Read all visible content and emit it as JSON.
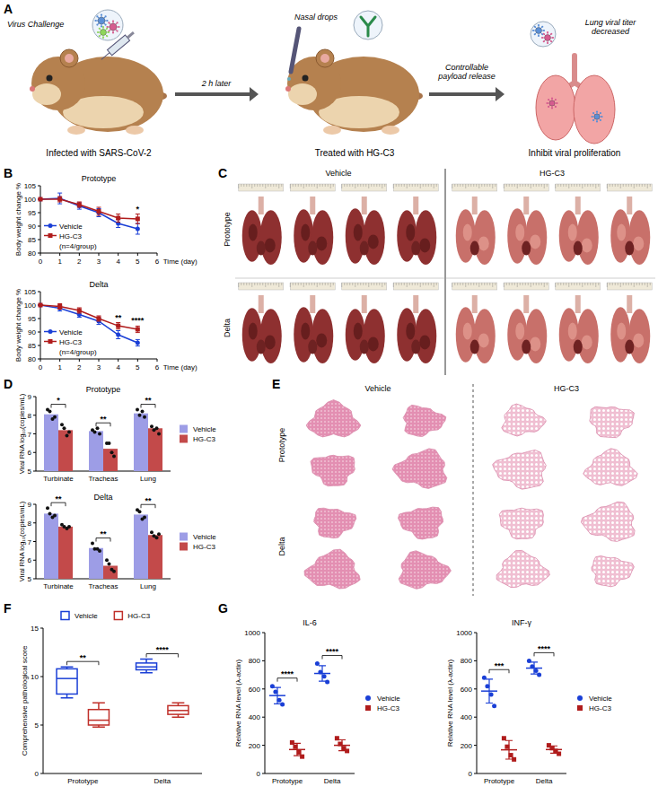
{
  "panel_labels": [
    "A",
    "B",
    "C",
    "D",
    "E",
    "F",
    "G"
  ],
  "schematic": {
    "steps": [
      {
        "top": "Virus Challenge",
        "caption": "Infected with SARS-CoV-2"
      },
      {
        "top": "Nasal drops",
        "caption": "Treated with HG-C3"
      },
      {
        "top": "Lung viral titer decreased",
        "caption": "Inhibit viral proliferation"
      }
    ],
    "arrows": [
      "2 h later",
      "Controllable payload release"
    ]
  },
  "photos": {
    "columns": [
      "Vehicle",
      "HG-C3"
    ],
    "rows": [
      "Prototype",
      "Delta"
    ]
  },
  "histology": {
    "columns": [
      "Vehicle",
      "HG-C3"
    ],
    "rows": [
      "Prototype",
      "Delta"
    ]
  },
  "chart_data": [
    {
      "type": "line",
      "title": "Prototype",
      "x_label": "Time (day)",
      "y_label": "Body weight change %",
      "x": [
        0,
        1,
        2,
        3,
        4,
        5
      ],
      "xlim": [
        0,
        6
      ],
      "xticks": [
        0,
        1,
        2,
        3,
        4,
        5,
        6
      ],
      "ylim": [
        80,
        105
      ],
      "yticks": [
        80,
        85,
        90,
        95,
        100,
        105
      ],
      "grid": false,
      "legend": "lower left",
      "legend_note": "(n=4/group)",
      "series": [
        {
          "name": "Vehicle",
          "color": "#1a3fd6",
          "marker": "circle",
          "values": [
            100,
            100.3,
            97.5,
            95,
            91,
            89
          ],
          "errors": [
            0,
            2,
            1.2,
            1.5,
            1.5,
            2
          ]
        },
        {
          "name": "HG-C3",
          "color": "#b01c1c",
          "marker": "square",
          "values": [
            100,
            100,
            98,
            95.5,
            93,
            92.7
          ],
          "errors": [
            0,
            1,
            1,
            1.5,
            1.5,
            1.8
          ]
        }
      ],
      "annotations": [
        {
          "x": 5,
          "text": "*"
        }
      ]
    },
    {
      "type": "line",
      "title": "Delta",
      "x_label": "Time (day)",
      "y_label": "Body weight change %",
      "x": [
        0,
        1,
        2,
        3,
        4,
        5
      ],
      "xlim": [
        0,
        6
      ],
      "xticks": [
        0,
        1,
        2,
        3,
        4,
        5,
        6
      ],
      "ylim": [
        80,
        105
      ],
      "yticks": [
        80,
        85,
        90,
        95,
        100,
        105
      ],
      "grid": false,
      "legend": "lower left",
      "legend_note": "(n=4/group)",
      "series": [
        {
          "name": "Vehicle",
          "color": "#1a3fd6",
          "marker": "circle",
          "values": [
            100,
            98.8,
            96.5,
            94,
            89,
            86
          ],
          "errors": [
            0,
            1,
            1,
            1.2,
            1.5,
            1.2
          ]
        },
        {
          "name": "HG-C3",
          "color": "#b01c1c",
          "marker": "square",
          "values": [
            100,
            99.5,
            98,
            95,
            92.3,
            91
          ],
          "errors": [
            0,
            1,
            1,
            1,
            1.2,
            1.2
          ]
        }
      ],
      "annotations": [
        {
          "x": 4,
          "text": "**"
        },
        {
          "x": 5,
          "text": "****"
        }
      ]
    },
    {
      "type": "bar",
      "title": "Prototype",
      "y_label": "Viral RNA log₁₀(copies/mL)",
      "categories": [
        "Turbinate",
        "Tracheas",
        "Lung"
      ],
      "ylim": [
        5,
        9
      ],
      "yticks": [
        5,
        6,
        7,
        8,
        9
      ],
      "grid": false,
      "legend": "right",
      "series": [
        {
          "name": "Vehicle",
          "color": "#9d9de6",
          "values": [
            8.05,
            7.15,
            8.1
          ],
          "points": [
            [
              8.3,
              8.2,
              7.8,
              7.9
            ],
            [
              7.2,
              7.1,
              7.3,
              7.0
            ],
            [
              8.3,
              8.0,
              8.2,
              7.9
            ]
          ]
        },
        {
          "name": "HG-C3",
          "color": "#c34a4a",
          "values": [
            7.2,
            6.2,
            7.3
          ],
          "points": [
            [
              7.5,
              7.3,
              6.9,
              7.1
            ],
            [
              6.5,
              6.5,
              6.0,
              5.8
            ],
            [
              7.4,
              7.2,
              7.3,
              7.0
            ]
          ]
        }
      ],
      "annotations": [
        {
          "category": 0,
          "text": "*"
        },
        {
          "category": 1,
          "text": "**"
        },
        {
          "category": 2,
          "text": "**"
        }
      ]
    },
    {
      "type": "bar",
      "title": "Delta",
      "y_label": "Viral RNA log₁₀(copies/mL)",
      "categories": [
        "Turbinate",
        "Tracheas",
        "Lung"
      ],
      "ylim": [
        5,
        9
      ],
      "yticks": [
        5,
        6,
        7,
        8,
        9
      ],
      "grid": false,
      "legend": "right",
      "series": [
        {
          "name": "Vehicle",
          "color": "#9d9de6",
          "values": [
            8.5,
            6.65,
            8.45
          ],
          "points": [
            [
              8.8,
              8.5,
              8.3,
              8.4
            ],
            [
              6.9,
              6.6,
              6.6,
              6.5
            ],
            [
              8.7,
              8.6,
              8.2,
              8.3
            ]
          ]
        },
        {
          "name": "HG-C3",
          "color": "#c34a4a",
          "values": [
            7.8,
            5.7,
            7.35
          ],
          "points": [
            [
              7.9,
              7.8,
              7.7,
              7.8
            ],
            [
              6.0,
              5.8,
              5.5,
              5.4
            ],
            [
              7.5,
              7.3,
              7.2,
              7.4
            ]
          ]
        }
      ],
      "annotations": [
        {
          "category": 0,
          "text": "**"
        },
        {
          "category": 1,
          "text": "**"
        },
        {
          "category": 2,
          "text": "**"
        }
      ]
    },
    {
      "type": "box",
      "y_label": "Comprehensive pathological score",
      "categories": [
        "Prototype",
        "Delta"
      ],
      "ylim": [
        0,
        15
      ],
      "yticks": [
        0,
        5,
        10,
        15
      ],
      "grid": false,
      "legend": "top",
      "series": [
        {
          "name": "Vehicle",
          "color": "#1a3fd6",
          "boxes": [
            {
              "min": 7.8,
              "q1": 8.2,
              "median": 9.8,
              "q3": 10.8,
              "max": 11
            },
            {
              "min": 10.4,
              "q1": 10.7,
              "median": 11,
              "q3": 11.4,
              "max": 11.8
            }
          ]
        },
        {
          "name": "HG-C3",
          "color": "#c0302a",
          "boxes": [
            {
              "min": 4.8,
              "q1": 5,
              "median": 5.5,
              "q3": 6.6,
              "max": 7.3
            },
            {
              "min": 5.8,
              "q1": 6.1,
              "median": 6.5,
              "q3": 7,
              "max": 7.3
            }
          ]
        }
      ],
      "annotations": [
        {
          "category": 0,
          "text": "**"
        },
        {
          "category": 1,
          "text": "****"
        }
      ]
    },
    {
      "type": "scatter",
      "title": "IL-6",
      "y_label": "Relative RNA level (λ-actin)",
      "categories": [
        "Prototype",
        "Delta"
      ],
      "ylim": [
        0,
        1000
      ],
      "yticks": [
        0,
        200,
        400,
        600,
        800,
        1000
      ],
      "grid": false,
      "legend": "right",
      "series": [
        {
          "name": "Vehicle",
          "color": "#1a3fd6",
          "marker": "circle",
          "points": [
            [
              620,
              580,
              520,
              490
            ],
            [
              780,
              720,
              690,
              650
            ]
          ],
          "mean": [
            553,
            710
          ],
          "sd": [
            58,
            55
          ]
        },
        {
          "name": "HG-C3",
          "color": "#b01c1c",
          "marker": "square",
          "points": [
            [
              220,
              190,
              150,
              120
            ],
            [
              250,
              210,
              180,
              160
            ]
          ],
          "mean": [
            170,
            200
          ],
          "sd": [
            44,
            39
          ]
        }
      ],
      "annotations": [
        {
          "category": 0,
          "text": "****"
        },
        {
          "category": 1,
          "text": "****"
        }
      ]
    },
    {
      "type": "scatter",
      "title": "INF-γ",
      "y_label": "Relative RNA level (λ-actin)",
      "categories": [
        "Prototype",
        "Delta"
      ],
      "ylim": [
        0,
        1000
      ],
      "yticks": [
        0,
        200,
        400,
        600,
        800,
        1000
      ],
      "grid": false,
      "legend": "right",
      "series": [
        {
          "name": "Vehicle",
          "color": "#1a3fd6",
          "marker": "circle",
          "points": [
            [
              680,
              620,
              560,
              480
            ],
            [
              800,
              760,
              730,
              700
            ]
          ],
          "mean": [
            585,
            748
          ],
          "sd": [
            85,
            42
          ]
        },
        {
          "name": "HG-C3",
          "color": "#b01c1c",
          "marker": "square",
          "points": [
            [
              250,
              190,
              130,
              100
            ],
            [
              200,
              180,
              160,
              140
            ]
          ],
          "mean": [
            168,
            170
          ],
          "sd": [
            66,
            26
          ]
        }
      ],
      "annotations": [
        {
          "category": 0,
          "text": "***"
        },
        {
          "category": 1,
          "text": "****"
        }
      ]
    }
  ]
}
